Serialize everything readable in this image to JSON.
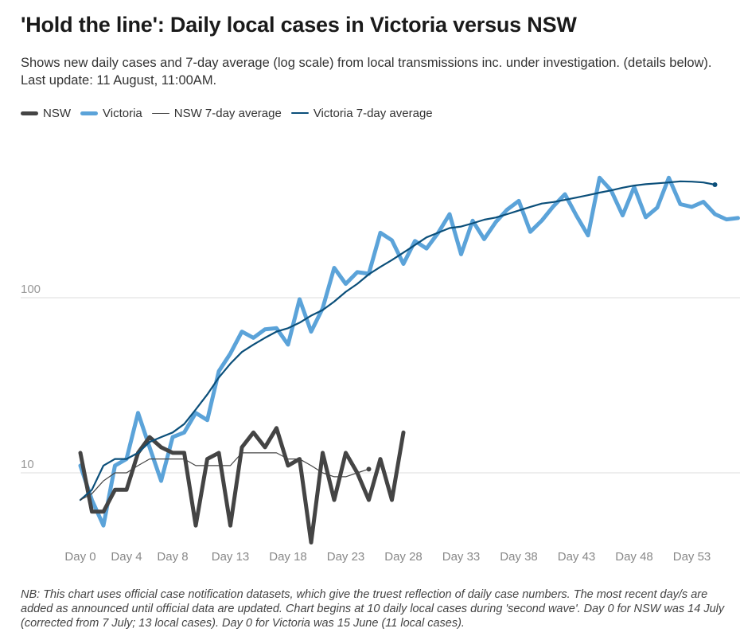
{
  "chart_data": {
    "type": "line",
    "title": "'Hold the line': Daily local cases in Victoria versus NSW",
    "subtitle": "Shows new daily cases and 7-day average (log scale) from local transmissions inc. under investigation. (details below). Last update: 11 August, 11:00AM.",
    "note": "NB: This chart uses official case notification datasets, which give the truest reflection of daily case numbers. The most recent day/s are added as announced until official data are updated. Chart begins at 10 daily local cases during 'second wave'. Day 0 for NSW was 14 July (corrected from 7 July; 13 local cases). Day 0 for Victoria was 15 June (11 local cases).",
    "xlabel": "",
    "ylabel": "",
    "yscale": "log",
    "ylim": [
      3.2,
      450
    ],
    "xlim": [
      0,
      57
    ],
    "y_ticks": [
      {
        "value": 10,
        "label": "10"
      },
      {
        "value": 100,
        "label": "100"
      }
    ],
    "x_ticks": [
      {
        "value": 0,
        "label": "Day 0"
      },
      {
        "value": 4,
        "label": "Day 4"
      },
      {
        "value": 8,
        "label": "Day 8"
      },
      {
        "value": 13,
        "label": "Day 13"
      },
      {
        "value": 18,
        "label": "Day 18"
      },
      {
        "value": 23,
        "label": "Day 23"
      },
      {
        "value": 28,
        "label": "Day 28"
      },
      {
        "value": 33,
        "label": "Day 33"
      },
      {
        "value": 38,
        "label": "Day 38"
      },
      {
        "value": 43,
        "label": "Day 43"
      },
      {
        "value": 48,
        "label": "Day 48"
      },
      {
        "value": 53,
        "label": "Day 53"
      }
    ],
    "legend": [
      "NSW",
      "Victoria",
      "NSW 7-day average",
      "Victoria 7-day average"
    ],
    "series": [
      {
        "name": "NSW",
        "color": "#444444",
        "values": [
          13,
          6,
          6,
          8,
          8,
          13,
          16,
          14,
          13,
          13,
          5,
          12,
          13,
          5,
          14,
          17,
          14,
          18,
          11,
          12,
          4,
          13,
          7,
          13,
          10,
          7,
          12,
          7,
          17
        ]
      },
      {
        "name": "Victoria",
        "color": "#5ba3d9",
        "values": [
          11,
          7,
          5,
          11,
          12,
          22,
          14,
          9,
          16,
          17,
          22,
          20,
          38,
          48,
          64,
          59,
          66,
          67,
          54,
          98,
          64,
          87,
          148,
          120,
          140,
          137,
          235,
          213,
          156,
          211,
          191,
          234,
          300,
          177,
          275,
          216,
          270,
          319,
          357,
          238,
          276,
          333,
          390,
          294,
          227,
          484,
          410,
          295,
          429,
          288,
          327,
          484,
          342,
          330,
          353,
          300,
          280,
          285
        ]
      },
      {
        "name": "NSW 7-day average",
        "color": "#444444",
        "values": [
          7,
          7.6,
          9,
          10,
          10,
          11,
          12,
          12,
          12,
          12,
          11,
          11,
          11,
          11,
          13,
          13,
          13,
          13,
          12,
          12,
          11,
          10,
          9.5,
          9.5,
          10,
          10.5
        ]
      },
      {
        "name": "Victoria 7-day average",
        "color": "#0b4f7a",
        "values": [
          7,
          8,
          11,
          12,
          12,
          13,
          15,
          16,
          17,
          19,
          23,
          28,
          35,
          42,
          49,
          54,
          59,
          64,
          67,
          72,
          79,
          85,
          95,
          108,
          120,
          136,
          150,
          164,
          181,
          200,
          221,
          235,
          250,
          255,
          266,
          279,
          287,
          300,
          315,
          330,
          345,
          352,
          362,
          373,
          385,
          398,
          410,
          425,
          437,
          445,
          450,
          455,
          462,
          460,
          455,
          442
        ]
      }
    ]
  }
}
